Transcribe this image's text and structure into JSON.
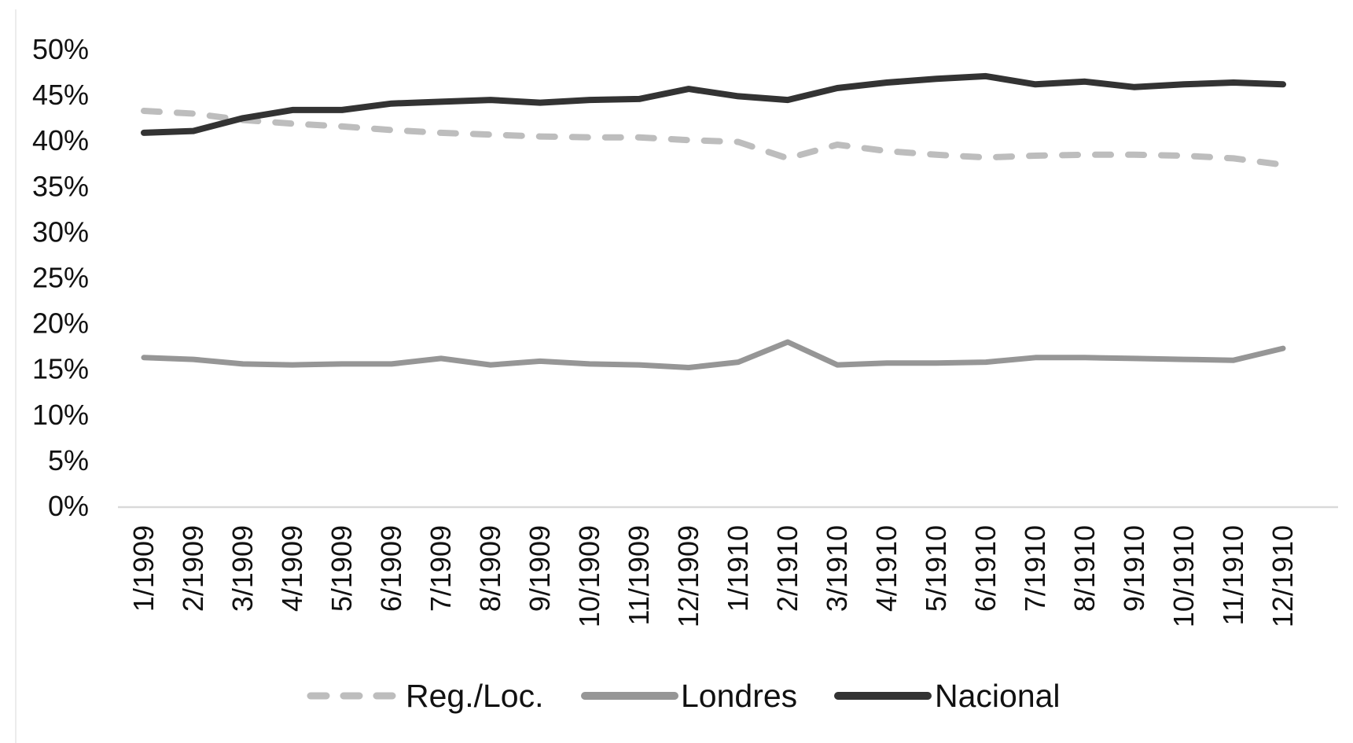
{
  "chart_data": {
    "type": "line",
    "title": "",
    "xlabel": "",
    "ylabel": "",
    "x_categories": [
      "1/1909",
      "2/1909",
      "3/1909",
      "4/1909",
      "5/1909",
      "6/1909",
      "7/1909",
      "8/1909",
      "9/1909",
      "10/1909",
      "11/1909",
      "12/1909",
      "1/1910",
      "2/1910",
      "3/1910",
      "4/1910",
      "5/1910",
      "6/1910",
      "7/1910",
      "8/1910",
      "9/1910",
      "10/1910",
      "11/1910",
      "12/1910"
    ],
    "y_axis": {
      "min": 0,
      "max": 50,
      "step": 5,
      "format": "percent",
      "tick_labels": [
        "0%",
        "5%",
        "10%",
        "15%",
        "20%",
        "25%",
        "30%",
        "35%",
        "40%",
        "45%",
        "50%"
      ]
    },
    "grid": false,
    "legend": {
      "position": "bottom",
      "entries": [
        "Reg./Loc.",
        "Londres",
        "Nacional"
      ]
    },
    "series": [
      {
        "name": "Reg./Loc.",
        "style": "dashed",
        "color": "#bdbdbd",
        "values": [
          43.2,
          42.9,
          42.2,
          41.8,
          41.5,
          41.1,
          40.8,
          40.6,
          40.4,
          40.3,
          40.3,
          40.0,
          39.8,
          38.0,
          39.5,
          38.8,
          38.4,
          38.1,
          38.3,
          38.4,
          38.4,
          38.3,
          38.0,
          37.3
        ]
      },
      {
        "name": "Londres",
        "style": "solid",
        "color": "#969696",
        "values": [
          16.2,
          16.0,
          15.5,
          15.4,
          15.5,
          15.5,
          16.1,
          15.4,
          15.8,
          15.5,
          15.4,
          15.1,
          15.7,
          17.9,
          15.4,
          15.6,
          15.6,
          15.7,
          16.2,
          16.2,
          16.1,
          16.0,
          15.9,
          17.2
        ]
      },
      {
        "name": "Nacional",
        "style": "solid",
        "color": "#333333",
        "values": [
          40.8,
          41.0,
          42.4,
          43.3,
          43.3,
          44.0,
          44.2,
          44.4,
          44.1,
          44.4,
          44.5,
          45.6,
          44.8,
          44.4,
          45.7,
          46.3,
          46.7,
          47.0,
          46.1,
          46.4,
          45.8,
          46.1,
          46.3,
          46.1
        ]
      }
    ]
  },
  "colors": {
    "background": "#ffffff",
    "axis_line": "#d9d9d9",
    "tick_text": "#111111",
    "legend_text": "#111111",
    "page_border_line": "#ececec"
  }
}
